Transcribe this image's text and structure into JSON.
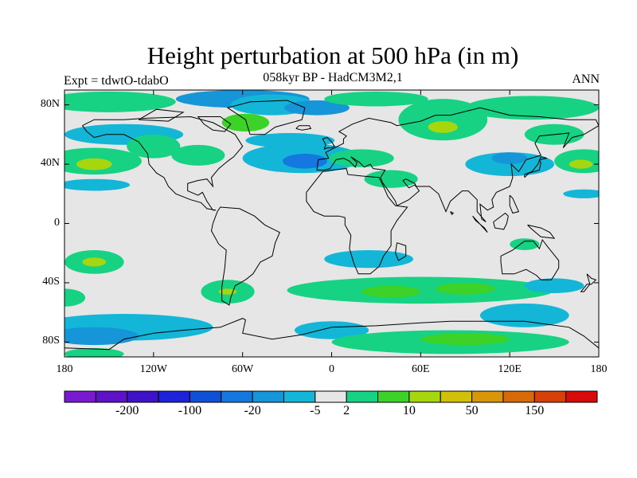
{
  "title": "Height perturbation at 500 hPa (in m)",
  "subtitle": "058kyr BP - HadCM3M2,1",
  "left_label": "Expt = tdwtO-tdabO",
  "right_label": "ANN",
  "map": {
    "lat_labels": [
      "80N",
      "40N",
      "0",
      "40S",
      "80S"
    ],
    "lat_values": [
      80,
      40,
      0,
      -40,
      -80
    ],
    "lon_labels": [
      "180",
      "120W",
      "60W",
      "0",
      "60E",
      "120E",
      "180"
    ],
    "lon_values": [
      -180,
      -120,
      -60,
      0,
      60,
      120,
      180
    ],
    "lon_range": [
      -180,
      180
    ],
    "lat_range": [
      -90,
      90
    ],
    "land_outline": "#000000",
    "background_fill": "#e6e6e6"
  },
  "colorbar": {
    "colors": [
      "#7a1ad0",
      "#5e12c8",
      "#3e12c8",
      "#1e22d8",
      "#1050d8",
      "#1478e0",
      "#1696d8",
      "#14b6d8",
      "#e6e6e6",
      "#16d282",
      "#3cd228",
      "#a6d60e",
      "#d0c00a",
      "#d8960a",
      "#d86a0a",
      "#d8400a",
      "#d80a0a"
    ],
    "labels": [
      "-200",
      "-100",
      "-20",
      "-5",
      "2",
      "10",
      "50",
      "150"
    ],
    "label_boundary_index": [
      2,
      4,
      6,
      8,
      9,
      11,
      13,
      15
    ]
  }
}
